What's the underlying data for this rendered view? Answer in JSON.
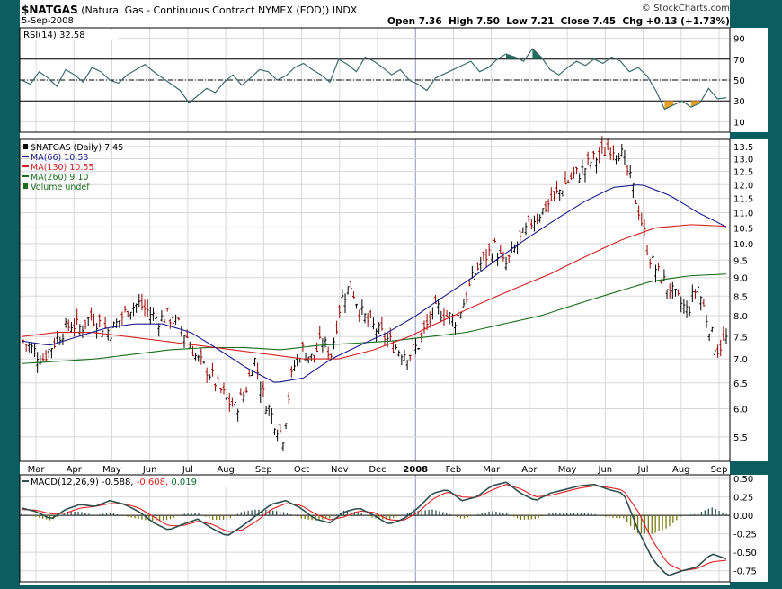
{
  "header": {
    "symbol": "$NATGAS",
    "description": "(Natural Gas - Continuous Contract NYMEX (EOD))",
    "exchange": "INDX",
    "date": "5-Sep-2008",
    "watermark": "© StockCharts.com",
    "ohlc": "Open 7.36  High 7.50  Low 7.21  Close 7.45  Chg +0.13 (+1.73%)"
  },
  "colors": {
    "frame": "#0b5d60",
    "rsi_line": "#3d6b6b",
    "rsi_overbought_fill": "#1e6e5a",
    "rsi_oversold_fill": "#e8a020",
    "price_bars": "#000000",
    "price_bars_down": "#9b0000",
    "ma66": "#1a1a8c",
    "ma130": "#d42020",
    "ma260": "#1a6e1a",
    "macd_line": "#2f4f4f",
    "macd_signal": "#e02020",
    "macd_hist": "#7a7a10"
  },
  "chart_data": [
    {
      "type": "line",
      "panel": "rsi",
      "legend": "RSI(14) 32.58",
      "ylim": [
        0,
        100
      ],
      "yticks": [
        10,
        30,
        50,
        70,
        90
      ],
      "reference_lines": [
        30,
        50,
        70
      ],
      "series": [
        {
          "name": "RSI(14)",
          "values": [
            50,
            46,
            58,
            52,
            44,
            60,
            55,
            48,
            62,
            58,
            50,
            47,
            55,
            60,
            65,
            58,
            52,
            46,
            40,
            28,
            35,
            42,
            38,
            48,
            55,
            45,
            52,
            60,
            58,
            50,
            54,
            62,
            66,
            60,
            55,
            48,
            70,
            65,
            58,
            72,
            68,
            62,
            55,
            60,
            50,
            46,
            40,
            52,
            56,
            60,
            64,
            68,
            58,
            62,
            70,
            75,
            72,
            68,
            80,
            72,
            60,
            55,
            62,
            68,
            64,
            70,
            66,
            72,
            68,
            58,
            62,
            54,
            40,
            22,
            26,
            30,
            24,
            28,
            42,
            32,
            33
          ]
        }
      ]
    },
    {
      "type": "bar",
      "panel": "price",
      "legend": [
        "$NATGAS (Daily) 7.45",
        "MA(66) 10.53",
        "MA(130) 10.55",
        "MA(260) 9.10",
        "Volume undef"
      ],
      "ylim": [
        5.1,
        13.8
      ],
      "log_scale": true,
      "yticks": [
        5.5,
        6.0,
        6.5,
        7.0,
        7.5,
        8.0,
        8.5,
        9.0,
        9.5,
        10.0,
        10.5,
        11.0,
        11.5,
        12.0,
        12.5,
        13.0,
        13.5
      ],
      "x_labels": [
        "Mar",
        "Apr",
        "May",
        "Jun",
        "Jul",
        "Aug",
        "Sep",
        "Oct",
        "Nov",
        "Dec",
        "2008",
        "Feb",
        "Mar",
        "Apr",
        "May",
        "Jun",
        "Jul",
        "Aug",
        "Sep"
      ],
      "series": [
        {
          "name": "$NATGAS (Daily)",
          "values": [
            7.4,
            7.2,
            7.0,
            7.3,
            7.6,
            7.8,
            7.7,
            8.0,
            7.8,
            7.6,
            7.9,
            8.2,
            8.3,
            8.1,
            7.9,
            8.0,
            7.8,
            7.5,
            7.0,
            6.8,
            6.5,
            6.2,
            6.0,
            6.3,
            7.0,
            6.2,
            5.8,
            5.5,
            6.8,
            7.2,
            7.0,
            7.4,
            7.1,
            8.4,
            8.8,
            8.1,
            7.8,
            7.6,
            7.4,
            7.2,
            7.1,
            7.3,
            7.8,
            8.2,
            8.0,
            7.9,
            8.5,
            9.2,
            9.6,
            9.9,
            9.3,
            9.8,
            10.3,
            10.8,
            11.1,
            11.5,
            11.9,
            12.3,
            12.5,
            12.9,
            13.2,
            13.5,
            13.3,
            12.2,
            11.0,
            9.6,
            9.1,
            8.7,
            8.4,
            8.1,
            8.8,
            7.9,
            7.2,
            7.45
          ]
        },
        {
          "name": "MA(66)",
          "values": [
            7.4,
            7.3,
            7.5,
            7.7,
            7.8,
            7.8,
            7.6,
            7.2,
            6.8,
            6.5,
            6.6,
            7.0,
            7.3,
            7.6,
            8.0,
            8.5,
            9.0,
            9.6,
            10.2,
            10.8,
            11.4,
            11.9,
            12.0,
            11.6,
            11.0,
            10.53
          ]
        },
        {
          "name": "MA(130)",
          "values": [
            7.5,
            7.6,
            7.6,
            7.5,
            7.4,
            7.3,
            7.2,
            7.1,
            7.0,
            7.0,
            7.2,
            7.5,
            7.9,
            8.3,
            8.7,
            9.1,
            9.6,
            10.1,
            10.5,
            10.6,
            10.55
          ]
        },
        {
          "name": "MA(260)",
          "values": [
            6.9,
            6.95,
            7.0,
            7.1,
            7.2,
            7.25,
            7.25,
            7.2,
            7.3,
            7.35,
            7.4,
            7.5,
            7.6,
            7.8,
            8.0,
            8.3,
            8.6,
            8.9,
            9.05,
            9.1
          ]
        }
      ]
    },
    {
      "type": "line",
      "panel": "macd",
      "legend": [
        "MACD(12,26,9)",
        "-0.588",
        "-0.608",
        "0.019"
      ],
      "ylim": [
        -0.9,
        0.55
      ],
      "yticks": [
        0.5,
        0.25,
        0.0,
        -0.25,
        -0.5,
        -0.75
      ],
      "ytick_labels": [
        "0.50",
        "0.25",
        "0.00",
        "-0.25",
        "-0.50",
        "-0.75"
      ],
      "series": [
        {
          "name": "MACD",
          "values": [
            0.1,
            0.05,
            -0.05,
            0.08,
            0.15,
            0.12,
            0.2,
            0.15,
            0.05,
            -0.1,
            -0.2,
            -0.12,
            -0.05,
            -0.18,
            -0.28,
            -0.15,
            0.0,
            0.15,
            0.2,
            0.1,
            -0.05,
            -0.1,
            0.05,
            0.1,
            0.0,
            -0.12,
            -0.05,
            0.1,
            0.3,
            0.35,
            0.2,
            0.25,
            0.4,
            0.45,
            0.3,
            0.2,
            0.3,
            0.35,
            0.4,
            0.42,
            0.35,
            0.3,
            -0.2,
            -0.6,
            -0.82,
            -0.75,
            -0.7,
            -0.52,
            -0.588
          ]
        },
        {
          "name": "Signal",
          "values": [
            0.08,
            0.07,
            0.02,
            0.03,
            0.1,
            0.12,
            0.16,
            0.16,
            0.1,
            -0.02,
            -0.14,
            -0.14,
            -0.08,
            -0.12,
            -0.22,
            -0.2,
            -0.08,
            0.08,
            0.16,
            0.14,
            0.02,
            -0.06,
            -0.02,
            0.06,
            0.04,
            -0.06,
            -0.07,
            0.04,
            0.22,
            0.32,
            0.25,
            0.24,
            0.34,
            0.42,
            0.36,
            0.25,
            0.27,
            0.32,
            0.37,
            0.4,
            0.38,
            0.34,
            0.05,
            -0.35,
            -0.65,
            -0.75,
            -0.72,
            -0.63,
            -0.608
          ]
        },
        {
          "name": "Histogram",
          "values": [
            0.02,
            -0.02,
            -0.07,
            0.05,
            0.05,
            0.0,
            0.04,
            -0.01,
            -0.05,
            -0.08,
            -0.06,
            0.02,
            0.03,
            -0.06,
            -0.06,
            0.05,
            0.08,
            0.07,
            0.04,
            -0.04,
            -0.07,
            -0.04,
            0.07,
            0.04,
            -0.04,
            -0.06,
            0.02,
            0.06,
            0.08,
            0.03,
            -0.05,
            0.01,
            0.06,
            0.03,
            -0.06,
            -0.05,
            0.03,
            0.03,
            0.03,
            0.02,
            -0.03,
            -0.04,
            -0.25,
            -0.25,
            -0.17,
            0.0,
            0.02,
            0.11,
            0.019
          ]
        }
      ]
    }
  ]
}
